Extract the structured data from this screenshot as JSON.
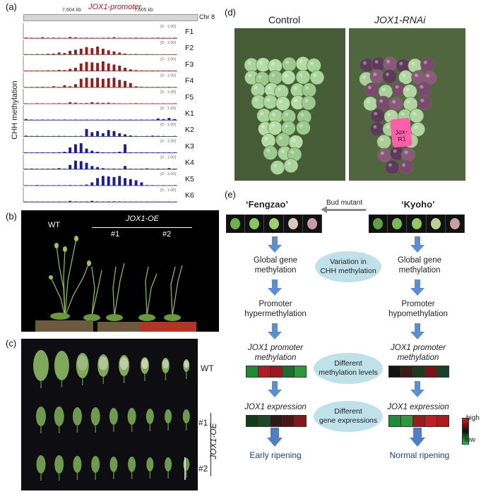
{
  "panel_a": {
    "label": "(a)",
    "promoter_label": "JOX1-promoter",
    "coord_labels": [
      "7,604 kb",
      "7,605 kb"
    ],
    "chrom": "Chr 8",
    "y_axis_label": "CHH methylation",
    "range_label": "[0 - 1.00]",
    "tracks": [
      {
        "name": "F1",
        "color": "#9b1b1b",
        "values": [
          0.06,
          0.05,
          0.04,
          0.1,
          0.05,
          0.06,
          0.05,
          0.04,
          0.12,
          0.08,
          0.05,
          0.06,
          0.05,
          0.04,
          0.05,
          0.06,
          0.1,
          0.05,
          0.04,
          0.05,
          0.06,
          0.05,
          0.04,
          0.05,
          0.06,
          0.05,
          0.04,
          0.05
        ]
      },
      {
        "name": "F2",
        "color": "#9b1b1b",
        "values": [
          0.05,
          0.04,
          0.06,
          0.05,
          0.08,
          0.1,
          0.2,
          0.15,
          0.35,
          0.45,
          0.55,
          0.7,
          0.6,
          0.75,
          0.55,
          0.4,
          0.3,
          0.2,
          0.1,
          0.05,
          0.06,
          0.04,
          0.05,
          0.04,
          0.03,
          0.04,
          0.03,
          0.04
        ]
      },
      {
        "name": "F3",
        "color": "#9b1b1b",
        "values": [
          0.04,
          0.03,
          0.05,
          0.04,
          0.06,
          0.05,
          0.1,
          0.08,
          0.2,
          0.3,
          0.7,
          0.85,
          0.8,
          0.75,
          0.9,
          0.7,
          0.6,
          0.5,
          0.3,
          0.15,
          0.08,
          0.05,
          0.04,
          0.05,
          0.04,
          0.03,
          0.04,
          0.03
        ]
      },
      {
        "name": "F4",
        "color": "#9b1b1b",
        "values": [
          0.03,
          0.04,
          0.05,
          0.06,
          0.04,
          0.1,
          0.05,
          0.2,
          0.1,
          0.3,
          0.8,
          0.9,
          0.85,
          0.9,
          0.8,
          0.85,
          0.9,
          0.7,
          0.6,
          0.4,
          0.1,
          0.05,
          0.04,
          0.03,
          0.04,
          0.03,
          0.04,
          0.03
        ]
      },
      {
        "name": "F5",
        "color": "#9b1b1b",
        "values": [
          0.04,
          0.03,
          0.05,
          0.04,
          0.03,
          0.04,
          0.05,
          0.04,
          0.15,
          0.1,
          0.05,
          0.06,
          0.15,
          0.1,
          0.08,
          0.1,
          0.05,
          0.04,
          0.03,
          0.04,
          0.05,
          0.04,
          0.03,
          0.04,
          0.03,
          0.04,
          0.03,
          0.04
        ]
      },
      {
        "name": "K1",
        "color": "#1a1aa8",
        "values": [
          0.1,
          0.05,
          0.04,
          0.05,
          0.04,
          0.05,
          0.04,
          0.05,
          0.04,
          0.05,
          0.04,
          0.05,
          0.04,
          0.05,
          0.04,
          0.05,
          0.04,
          0.05,
          0.04,
          0.05,
          0.04,
          0.05,
          0.04,
          0.05,
          0.15,
          0.1,
          0.2,
          0.1
        ]
      },
      {
        "name": "K2",
        "color": "#1a1aa8",
        "values": [
          0.08,
          0.05,
          0.06,
          0.05,
          0.04,
          0.05,
          0.06,
          0.05,
          0.04,
          0.05,
          0.06,
          0.7,
          0.4,
          0.5,
          0.3,
          0.6,
          0.5,
          0.3,
          0.2,
          0.1,
          0.05,
          0.04,
          0.05,
          0.08,
          0.06,
          0.05,
          0.04,
          0.05
        ]
      },
      {
        "name": "K3",
        "color": "#1a1aa8",
        "values": [
          0.04,
          0.03,
          0.04,
          0.05,
          0.04,
          0.05,
          0.06,
          0.1,
          0.5,
          0.8,
          0.9,
          0.4,
          0.2,
          0.1,
          0.05,
          0.04,
          0.05,
          0.1,
          0.8,
          0.05,
          0.04,
          0.05,
          0.04,
          0.03,
          0.04,
          0.03,
          0.04,
          0.03
        ]
      },
      {
        "name": "K4",
        "color": "#1a1aa8",
        "values": [
          0.05,
          0.06,
          0.05,
          0.04,
          0.05,
          0.06,
          0.1,
          0.05,
          0.4,
          0.8,
          0.75,
          0.6,
          0.3,
          0.2,
          0.1,
          0.05,
          0.06,
          0.05,
          0.3,
          0.05,
          0.04,
          0.05,
          0.08,
          0.04,
          0.05,
          0.04,
          0.1,
          0.05
        ]
      },
      {
        "name": "K5",
        "color": "#1a1aa8",
        "values": [
          0.04,
          0.03,
          0.05,
          0.04,
          0.03,
          0.04,
          0.05,
          0.04,
          0.05,
          0.04,
          0.05,
          0.1,
          0.3,
          0.7,
          0.9,
          0.85,
          0.8,
          0.9,
          0.7,
          0.6,
          0.5,
          0.3,
          0.05,
          0.04,
          0.03,
          0.04,
          0.03,
          0.04
        ]
      },
      {
        "name": "K6",
        "color": "#1a1aa8",
        "values": [
          0.04,
          0.03,
          0.04,
          0.03,
          0.04,
          0.03,
          0.04,
          0.03,
          0.1,
          0.05,
          0.04,
          0.05,
          0.1,
          0.05,
          0.04,
          0.05,
          0.06,
          0.05,
          0.04,
          0.03,
          0.04,
          0.03,
          0.04,
          0.03,
          0.04,
          0.03,
          0.04,
          0.03
        ]
      }
    ]
  },
  "panel_b": {
    "label": "(b)",
    "wt": "WT",
    "oe": "JOX1-OE",
    "lines": [
      "#1",
      "#2"
    ]
  },
  "panel_c": {
    "label": "(c)",
    "wt": "WT",
    "lines": [
      "#1",
      "#2"
    ],
    "oe": "JOX1-OE"
  },
  "panel_d": {
    "label": "(d)",
    "control": "Control",
    "rnai": "JOX1-RNAi",
    "tag": "Jox-R1"
  },
  "panel_e": {
    "label": "(e)",
    "left_title": "‘Fengzao’",
    "right_title": "‘Kyoho’",
    "bud_mutant": "Bud mutant",
    "left_global": "Global gene\nmethylation",
    "right_global": "Global gene\nmethylation",
    "left_promoter": "Promoter\nhypermethylation",
    "right_promoter": "Promoter\nhypomethylation",
    "gene_methylation": "JOX1 promoter\nmethylation",
    "gene_expression": "JOX1 expression",
    "ellipse1": "Variation in\nCHH methylation",
    "ellipse2": "Different\nmethylation levels",
    "ellipse3": "Different\ngene expressions",
    "left_outcome": "Early ripening",
    "right_outcome": "Normal ripening",
    "legend_high": "high",
    "legend_low": "low",
    "heat_left_meth": [
      "#1e8a34",
      "#b01c22",
      "#a0161c",
      "#1f6b2e",
      "#2a9a3c"
    ],
    "heat_right_meth": [
      "#101510",
      "#3a1a12",
      "#1c3a1e",
      "#7a1216",
      "#18402a"
    ],
    "heat_left_expr": [
      "#143a1c",
      "#1b4a24",
      "#2a1a12",
      "#4a1614",
      "#8a1418"
    ],
    "heat_right_expr": [
      "#1e8c36",
      "#2a9a3c",
      "#9a1a1e",
      "#c01e24",
      "#b0181e"
    ]
  }
}
